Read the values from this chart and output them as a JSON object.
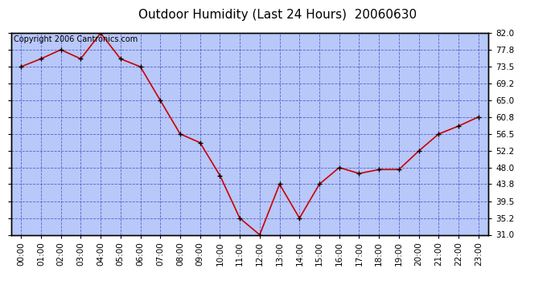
{
  "title": "Outdoor Humidity (Last 24 Hours)  20060630",
  "copyright": "Copyright 2006 Cantronics.com",
  "x_labels": [
    "00:00",
    "01:00",
    "02:00",
    "03:00",
    "04:00",
    "05:00",
    "06:00",
    "07:00",
    "08:00",
    "09:00",
    "10:00",
    "11:00",
    "12:00",
    "13:00",
    "14:00",
    "15:00",
    "16:00",
    "17:00",
    "18:00",
    "19:00",
    "20:00",
    "21:00",
    "22:00",
    "23:00"
  ],
  "y_values": [
    73.5,
    75.5,
    77.8,
    75.5,
    82.0,
    75.5,
    73.5,
    65.0,
    56.5,
    54.3,
    46.0,
    35.2,
    31.0,
    43.8,
    35.2,
    43.8,
    48.0,
    46.5,
    47.5,
    47.5,
    52.2,
    56.5,
    58.5,
    60.8
  ],
  "ylim_min": 31.0,
  "ylim_max": 82.0,
  "yticks": [
    31.0,
    35.2,
    39.5,
    43.8,
    48.0,
    52.2,
    56.5,
    60.8,
    65.0,
    69.2,
    73.5,
    77.8,
    82.0
  ],
  "line_color": "#cc0000",
  "marker_color": "#000000",
  "bg_color": "#b8c8f8",
  "title_color": "#000000",
  "title_fontsize": 11,
  "tick_label_color": "#000000",
  "grid_color": "#4444cc",
  "border_color": "#000000",
  "copyright_fontsize": 7,
  "tick_fontsize": 7.5
}
